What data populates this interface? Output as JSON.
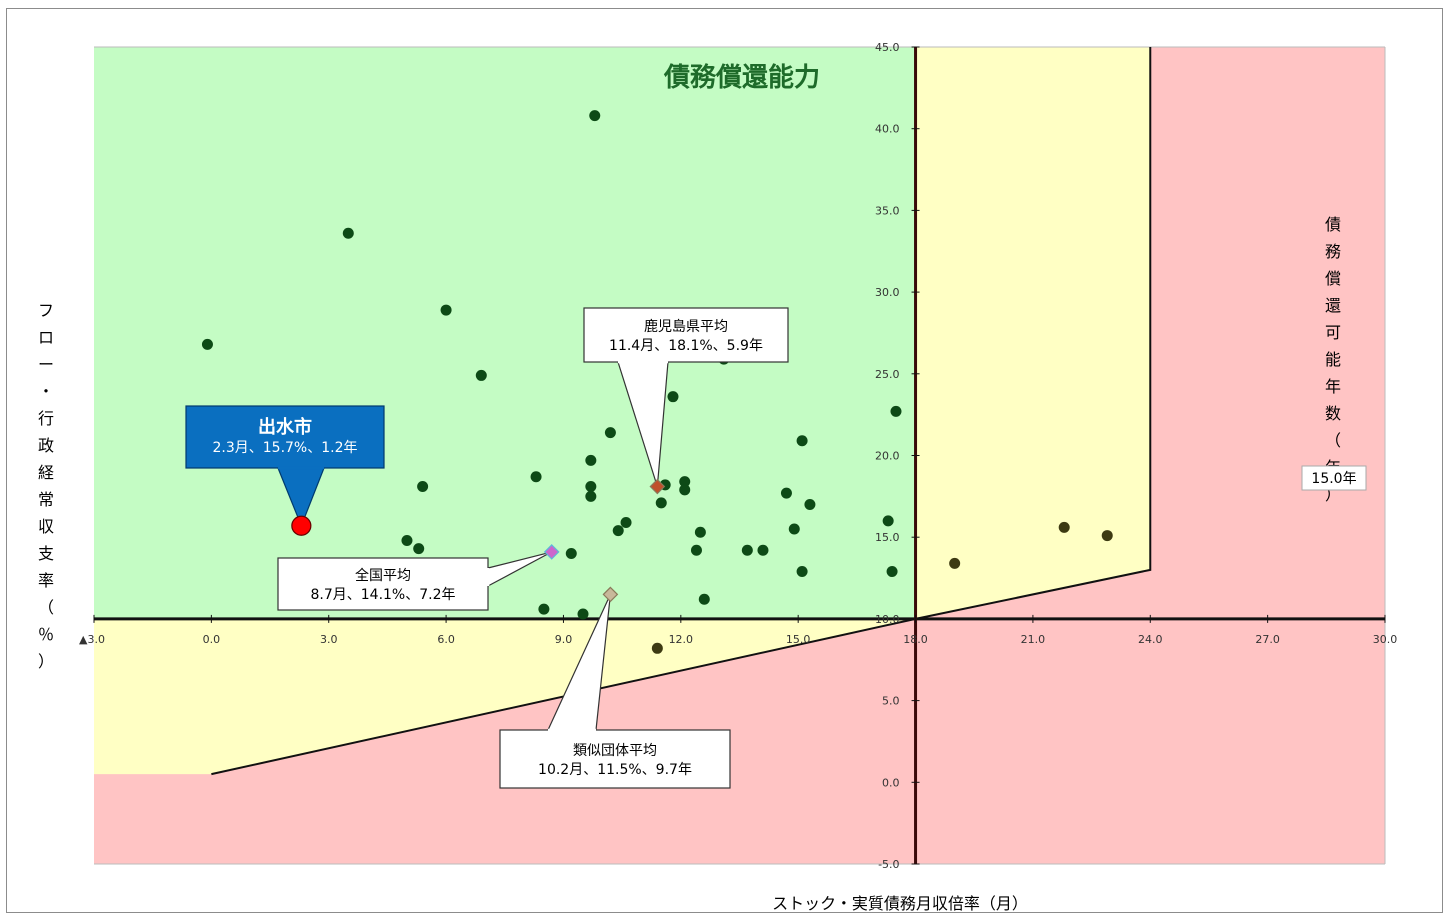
{
  "chart_data": {
    "type": "scatter",
    "title": "債務償還能力",
    "xlabel": "ストック・実質債務月収倍率（月）",
    "ylabel": "フロー・行政経常収支率（％）",
    "right_label": "債務償還可能年数（年）",
    "right_label_value": "15.0年",
    "xlim": [
      -3,
      30
    ],
    "ylim": [
      -5,
      45
    ],
    "x_ticks": [
      "▲3.0",
      "0.0",
      "3.0",
      "6.0",
      "9.0",
      "12.0",
      "15.0",
      "18.0",
      "21.0",
      "24.0",
      "27.0",
      "30.0"
    ],
    "y_ticks": [
      "45.0",
      "40.0",
      "35.0",
      "30.0",
      "25.0",
      "20.0",
      "15.0",
      "10.0",
      "5.0",
      "0.0",
      "-5.0"
    ],
    "regions": {
      "green": "#c4fcc4",
      "yellow": "#ffffc4",
      "red": "#ffc4c4"
    },
    "points": [
      {
        "x": 9.8,
        "y": 40.8
      },
      {
        "x": 3.5,
        "y": 33.6
      },
      {
        "x": 6.0,
        "y": 28.9
      },
      {
        "x": -0.1,
        "y": 26.8
      },
      {
        "x": 6.9,
        "y": 24.9
      },
      {
        "x": 13.1,
        "y": 25.9
      },
      {
        "x": 11.8,
        "y": 23.6
      },
      {
        "x": 17.5,
        "y": 22.7
      },
      {
        "x": 10.2,
        "y": 21.4
      },
      {
        "x": 15.1,
        "y": 20.9
      },
      {
        "x": 9.7,
        "y": 19.7
      },
      {
        "x": 8.3,
        "y": 18.7
      },
      {
        "x": 5.4,
        "y": 18.1
      },
      {
        "x": 9.7,
        "y": 18.1
      },
      {
        "x": 11.6,
        "y": 18.2
      },
      {
        "x": 12.1,
        "y": 18.4
      },
      {
        "x": 12.1,
        "y": 17.9
      },
      {
        "x": 9.7,
        "y": 17.5
      },
      {
        "x": 14.7,
        "y": 17.7
      },
      {
        "x": 11.5,
        "y": 17.1
      },
      {
        "x": 15.3,
        "y": 17.0
      },
      {
        "x": 10.6,
        "y": 15.9
      },
      {
        "x": 10.4,
        "y": 15.4
      },
      {
        "x": 12.5,
        "y": 15.3
      },
      {
        "x": 14.9,
        "y": 15.5
      },
      {
        "x": 17.3,
        "y": 16.0
      },
      {
        "x": 5.0,
        "y": 14.8
      },
      {
        "x": 5.3,
        "y": 14.3
      },
      {
        "x": 9.2,
        "y": 14.0
      },
      {
        "x": 12.4,
        "y": 14.2
      },
      {
        "x": 13.7,
        "y": 14.2
      },
      {
        "x": 14.1,
        "y": 14.2
      },
      {
        "x": 15.1,
        "y": 12.9
      },
      {
        "x": 17.4,
        "y": 12.9
      },
      {
        "x": 19.0,
        "y": 13.4
      },
      {
        "x": 21.8,
        "y": 15.6
      },
      {
        "x": 22.9,
        "y": 15.1
      },
      {
        "x": 12.6,
        "y": 11.2
      },
      {
        "x": 8.5,
        "y": 10.6
      },
      {
        "x": 9.5,
        "y": 10.3
      },
      {
        "x": 11.4,
        "y": 8.2
      }
    ],
    "highlight": {
      "name": "出水市",
      "label": "2.3月、15.7%、1.2年",
      "x": 2.3,
      "y": 15.7,
      "color": "#ff0000"
    },
    "averages": [
      {
        "name": "鹿児島県平均",
        "label": "11.4月、18.1%、5.9年",
        "x": 11.4,
        "y": 18.1,
        "color": "#c0502a"
      },
      {
        "name": "全国平均",
        "label": "8.7月、14.1%、7.2年",
        "x": 8.7,
        "y": 14.1,
        "color": "#cc66cc"
      },
      {
        "name": "類似団体平均",
        "label": "10.2月、11.5%、9.7年",
        "x": 10.2,
        "y": 11.5,
        "color": "#c8b89a"
      }
    ],
    "boundary": [
      [
        0,
        0.5
      ],
      [
        18,
        10
      ],
      [
        24,
        13
      ],
      [
        24,
        45
      ]
    ]
  }
}
